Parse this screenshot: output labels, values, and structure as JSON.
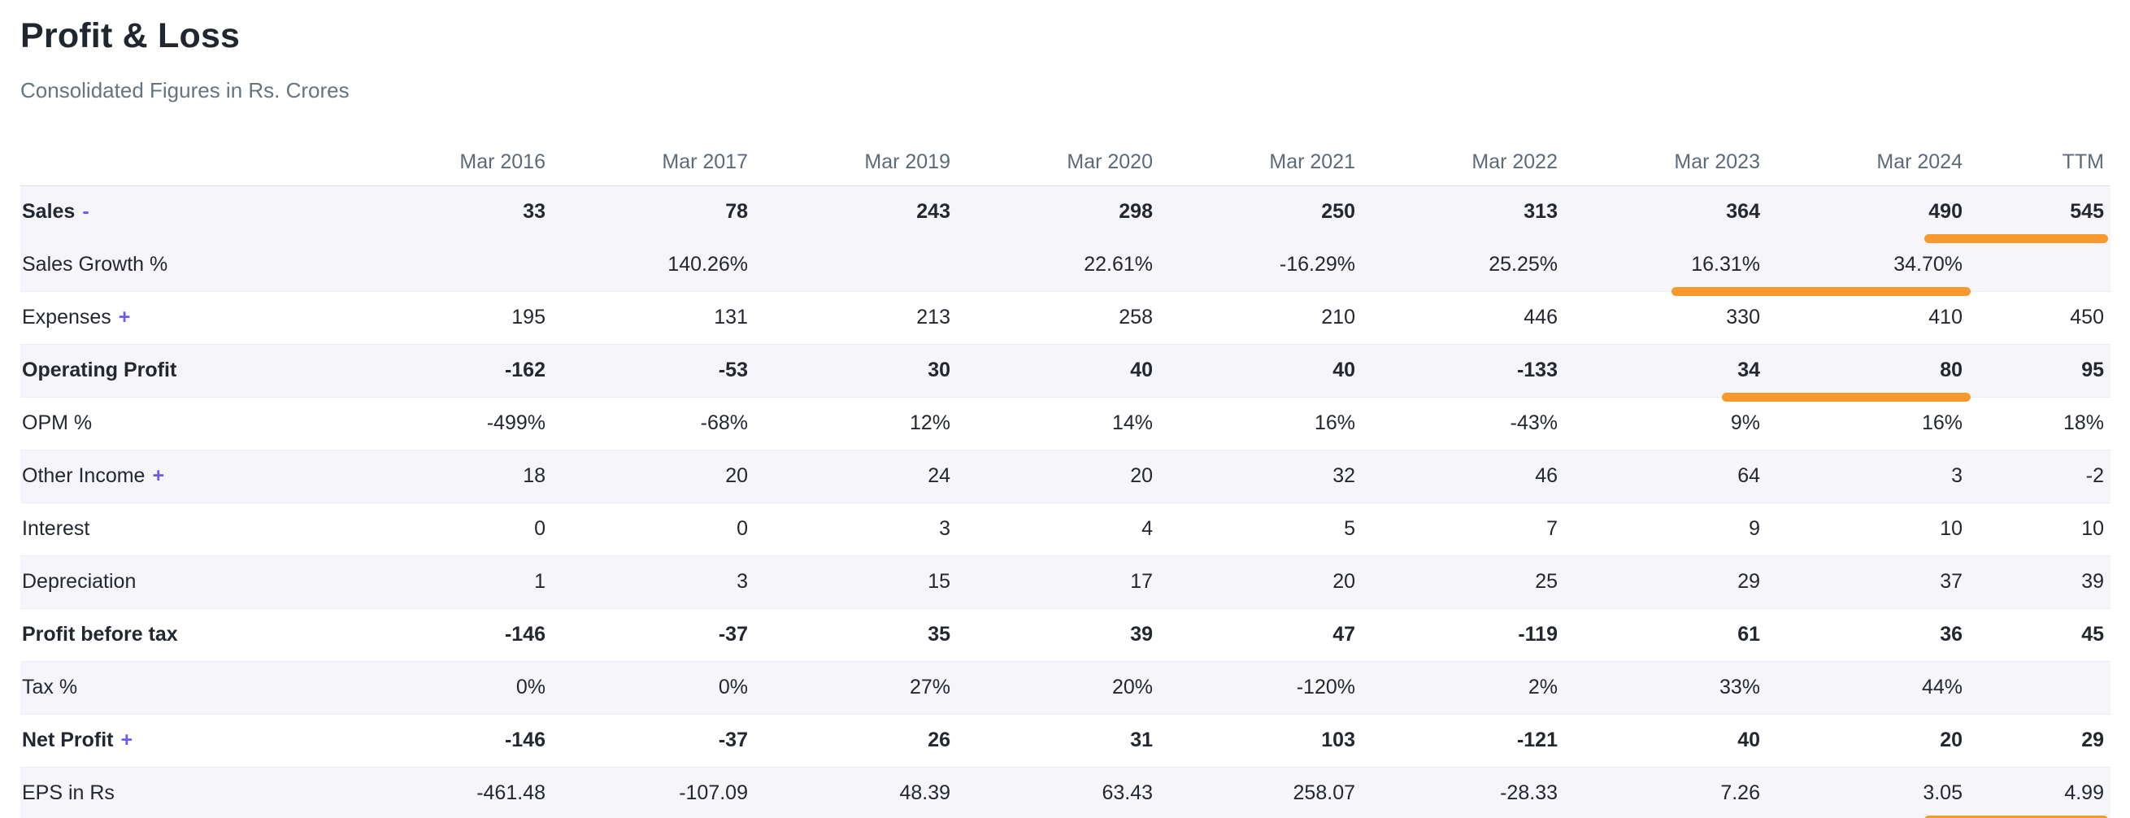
{
  "header": {
    "title": "Profit & Loss",
    "subtitle": "Consolidated Figures in Rs. Crores"
  },
  "table": {
    "columns": [
      "Mar 2016",
      "Mar 2017",
      "Mar 2019",
      "Mar 2020",
      "Mar 2021",
      "Mar 2022",
      "Mar 2023",
      "Mar 2024",
      "TTM"
    ],
    "rows": [
      {
        "label": "Sales",
        "toggle": "-",
        "values": [
          "33",
          "78",
          "243",
          "298",
          "250",
          "313",
          "364",
          "490",
          "545"
        ]
      },
      {
        "label": "Sales Growth %",
        "values": [
          "",
          "140.26%",
          "",
          "22.61%",
          "-16.29%",
          "25.25%",
          "16.31%",
          "34.70%",
          ""
        ]
      },
      {
        "label": "Expenses",
        "toggle": "+",
        "values": [
          "195",
          "131",
          "213",
          "258",
          "210",
          "446",
          "330",
          "410",
          "450"
        ]
      },
      {
        "label": "Operating Profit",
        "values": [
          "-162",
          "-53",
          "30",
          "40",
          "40",
          "-133",
          "34",
          "80",
          "95"
        ]
      },
      {
        "label": "OPM %",
        "values": [
          "-499%",
          "-68%",
          "12%",
          "14%",
          "16%",
          "-43%",
          "9%",
          "16%",
          "18%"
        ]
      },
      {
        "label": "Other Income",
        "toggle": "+",
        "values": [
          "18",
          "20",
          "24",
          "20",
          "32",
          "46",
          "64",
          "3",
          "-2"
        ]
      },
      {
        "label": "Interest",
        "values": [
          "0",
          "0",
          "3",
          "4",
          "5",
          "7",
          "9",
          "10",
          "10"
        ]
      },
      {
        "label": "Depreciation",
        "values": [
          "1",
          "3",
          "15",
          "17",
          "20",
          "25",
          "29",
          "37",
          "39"
        ]
      },
      {
        "label": "Profit before tax",
        "values": [
          "-146",
          "-37",
          "35",
          "39",
          "47",
          "-119",
          "61",
          "36",
          "45"
        ]
      },
      {
        "label": "Tax %",
        "values": [
          "0%",
          "0%",
          "27%",
          "20%",
          "-120%",
          "2%",
          "33%",
          "44%",
          ""
        ]
      },
      {
        "label": "Net Profit",
        "toggle": "+",
        "values": [
          "-146",
          "-37",
          "26",
          "31",
          "103",
          "-121",
          "40",
          "20",
          "29"
        ]
      },
      {
        "label": "EPS in Rs",
        "values": [
          "-461.48",
          "-107.09",
          "48.39",
          "63.43",
          "258.07",
          "-28.33",
          "7.26",
          "3.05",
          "4.99"
        ]
      }
    ],
    "highlights": [
      {
        "row": "Sales",
        "columns": [
          "Mar 2024",
          "TTM"
        ]
      },
      {
        "row": "Sales Growth %",
        "columns": [
          "Mar 2023",
          "Mar 2024"
        ]
      },
      {
        "row": "Operating Profit",
        "columns": [
          "Mar 2023",
          "Mar 2024"
        ]
      },
      {
        "row": "EPS in Rs",
        "columns": [
          "Mar 2024",
          "TTM"
        ]
      }
    ]
  },
  "colors": {
    "highlight_orange": "#f8992e",
    "toggle_purple": "#6c5ce7",
    "stripe_lavender": "#f5f5fa"
  }
}
